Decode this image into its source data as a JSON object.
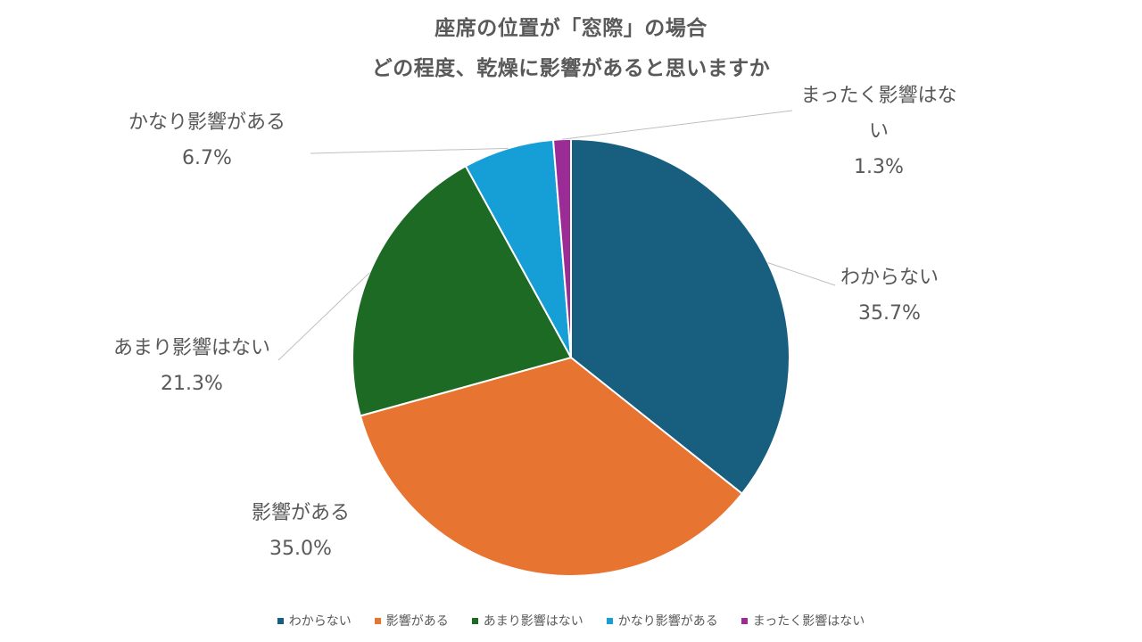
{
  "chart_data": {
    "type": "pie",
    "title_lines": [
      "座席の位置が「窓際」の場合",
      "どの程度、乾燥に影響があると思いますか"
    ],
    "slices": [
      {
        "label": "わからない",
        "value": 35.7,
        "value_label": "35.7%",
        "label_lines": [
          "わからない"
        ],
        "color": "#185E7F"
      },
      {
        "label": "影響がある",
        "value": 35.0,
        "value_label": "35.0%",
        "label_lines": [
          "影響がある"
        ],
        "color": "#E87432"
      },
      {
        "label": "あまり影響はない",
        "value": 21.3,
        "value_label": "21.3%",
        "label_lines": [
          "あまり影響はない"
        ],
        "color": "#1D6A24"
      },
      {
        "label": "かなり影響がある",
        "value": 6.7,
        "value_label": "6.7%",
        "label_lines": [
          "かなり影響がある"
        ],
        "color": "#169ED6"
      },
      {
        "label": "まったく影響はない",
        "value": 1.3,
        "value_label": "1.3%",
        "label_lines": [
          "まったく影響はな",
          "い"
        ],
        "color": "#9B2C96"
      }
    ],
    "legend_position": "bottom",
    "start_angle": "12 o'clock",
    "direction": "clockwise"
  }
}
